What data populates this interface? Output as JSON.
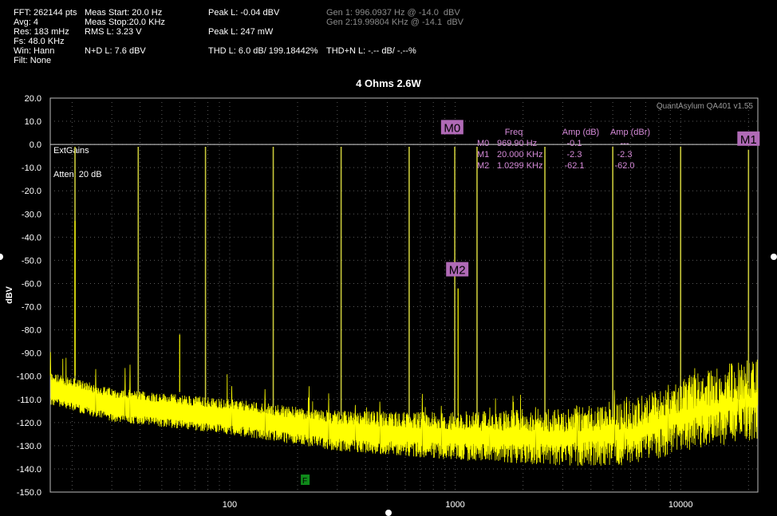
{
  "stats": {
    "fft": "FFT: 262144 pts",
    "avg": "Avg: 4",
    "res": "Res: 183 mHz",
    "fs": "Fs: 48.0 KHz",
    "win": "Win: Hann",
    "filt": "Filt: None",
    "meas_start": "Meas Start: 20.0 Hz",
    "meas_stop": "Meas Stop:20.0 KHz",
    "rms": "RMS L: 3.23 V",
    "nd": "N+D L: 7.6 dBV",
    "peak_dbv": "Peak L: -0.04 dBV",
    "peak_mw": "Peak L: 247 mW",
    "thd": "THD L: 6.0 dB/ 199.18442%",
    "thdn": "THD+N L: -.-- dB/ -.--%",
    "gen1": "Gen 1: 996.0937 Hz @ -14.0  dBV",
    "gen2": "Gen 2:19.99804 KHz @ -14.1  dBV"
  },
  "chart_data": {
    "type": "line",
    "title": "4 Ohms 2.6W",
    "ylabel": "dBV",
    "xlabel": "",
    "x_scale": "log",
    "xlim": [
      16,
      22000
    ],
    "ylim": [
      -150,
      20
    ],
    "y_ticks": [
      "20.0",
      "10.0",
      "0.0",
      "-10.0",
      "-20.0",
      "-30.0",
      "-40.0",
      "-50.0",
      "-60.0",
      "-70.0",
      "-80.0",
      "-90.0",
      "-100.0",
      "-110.0",
      "-120.0",
      "-130.0",
      "-140.0",
      "-150.0"
    ],
    "x_ticks": [
      "100",
      "1000",
      "10000"
    ],
    "grid": true,
    "reference_level_dbv": 0,
    "watermark": "QuantAsylum QA401 v1.55",
    "overlay_labels": [
      "ExtGains",
      "Atten: 20 dB"
    ],
    "marker_table": {
      "headers": [
        "Freq",
        "Amp (dB)",
        "Amp (dBr)"
      ],
      "rows": [
        {
          "name": "M0",
          "freq": "969.90 Hz",
          "amp_db": "-0.1",
          "amp_dbr": "---"
        },
        {
          "name": "M1",
          "freq": "20.000 KHz",
          "amp_db": "-2.3",
          "amp_dbr": "-2.3"
        },
        {
          "name": "M2",
          "freq": "1.0299 KHz",
          "amp_db": "-62.1",
          "amp_dbr": "-62.0"
        }
      ]
    },
    "markers": [
      {
        "name": "M0",
        "freq_hz": 969.9,
        "amp_db": -0.1
      },
      {
        "name": "M1",
        "freq_hz": 20000,
        "amp_db": -2.3
      },
      {
        "name": "M2",
        "freq_hz": 1029.9,
        "amp_db": -62.1
      }
    ],
    "filter_marker": {
      "label": "F",
      "freq_hz": 158
    },
    "gen_tones": [
      {
        "freq_hz": 20.6,
        "amp_dbv": -1
      },
      {
        "freq_hz": 39.3,
        "amp_dbv": -1
      },
      {
        "freq_hz": 78.1,
        "amp_dbv": -1
      },
      {
        "freq_hz": 156,
        "amp_dbv": -1
      },
      {
        "freq_hz": 312,
        "amp_dbv": -1
      },
      {
        "freq_hz": 625,
        "amp_dbv": -1
      },
      {
        "freq_hz": 996,
        "amp_dbv": -1
      },
      {
        "freq_hz": 1250,
        "amp_dbv": -1
      },
      {
        "freq_hz": 2500,
        "amp_dbv": -1
      },
      {
        "freq_hz": 5000,
        "amp_dbv": -1
      },
      {
        "freq_hz": 10000,
        "amp_dbv": -1
      },
      {
        "freq_hz": 20000,
        "amp_dbv": -2.3
      }
    ],
    "spurs": [
      {
        "freq_hz": 20.6,
        "amp_dbv": -33
      },
      {
        "freq_hz": 60,
        "amp_dbv": -82
      },
      {
        "freq_hz": 1030,
        "amp_dbv": -62.1
      }
    ],
    "noise_floor": [
      {
        "freq_hz": 16,
        "amp_dbv": -101
      },
      {
        "freq_hz": 30,
        "amp_dbv": -108
      },
      {
        "freq_hz": 100,
        "amp_dbv": -113
      },
      {
        "freq_hz": 300,
        "amp_dbv": -119
      },
      {
        "freq_hz": 1000,
        "amp_dbv": -121
      },
      {
        "freq_hz": 3000,
        "amp_dbv": -121
      },
      {
        "freq_hz": 6000,
        "amp_dbv": -119
      },
      {
        "freq_hz": 8000,
        "amp_dbv": -115
      },
      {
        "freq_hz": 10000,
        "amp_dbv": -111
      },
      {
        "freq_hz": 15000,
        "amp_dbv": -107
      },
      {
        "freq_hz": 22000,
        "amp_dbv": -104
      }
    ],
    "colors": {
      "trace": "#ffff00",
      "tone_line": "#c8c83a",
      "grid": "#5a5a5a",
      "marker_fill": "#b06ab6",
      "marker_text": "#d58ad8",
      "filter_fill": "#0f8a1a",
      "background": "#000000",
      "ref_line": "#d9d9d9"
    }
  }
}
